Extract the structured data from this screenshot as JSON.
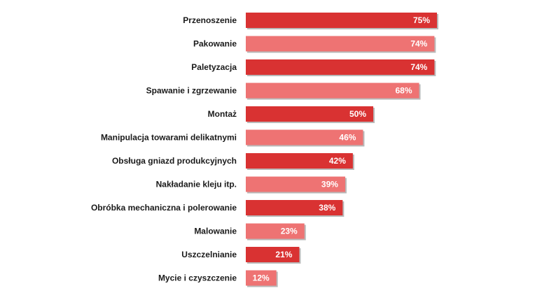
{
  "chart_data": {
    "type": "bar",
    "orientation": "horizontal",
    "title": "",
    "xlabel": "",
    "ylabel": "",
    "xlim": [
      0,
      100
    ],
    "grid": false,
    "value_suffix": "%",
    "categories": [
      "Przenoszenie",
      "Pakowanie",
      "Paletyzacja",
      "Spawanie i zgrzewanie",
      "Montaż",
      "Manipulacja towarami delikatnymi",
      "Obsługa gniazd produkcyjnych",
      "Nakładanie kleju itp.",
      "Obróbka mechaniczna i polerowanie",
      "Malowanie",
      "Uszczelnianie",
      "Mycie i czyszczenie"
    ],
    "values": [
      75,
      74,
      74,
      68,
      50,
      46,
      42,
      39,
      38,
      23,
      21,
      12
    ],
    "value_labels": [
      "75%",
      "74%",
      "74%",
      "68%",
      "50%",
      "46%",
      "42%",
      "39%",
      "38%",
      "23%",
      "21%",
      "12%"
    ],
    "colors": [
      "#d93232",
      "#ee7373"
    ]
  }
}
